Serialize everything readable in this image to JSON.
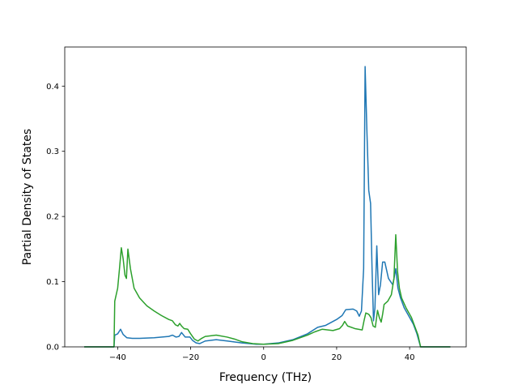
{
  "chart_data": {
    "type": "line",
    "title": "",
    "xlabel": "Frequency (THz)",
    "ylabel": "Partial Density of States",
    "xlim": [
      -54.5,
      55.5
    ],
    "ylim": [
      0,
      0.46
    ],
    "xticks": [
      -40,
      -20,
      0,
      20,
      40
    ],
    "yticks": [
      0.0,
      0.1,
      0.2,
      0.3,
      0.4
    ],
    "xtick_labels": [
      "−40",
      "−20",
      "0",
      "20",
      "40"
    ],
    "ytick_labels": [
      "0.0",
      "0.1",
      "0.2",
      "0.3",
      "0.4"
    ],
    "grid": false,
    "legend": "none",
    "series": [
      {
        "color": "#1f77b4",
        "x": [
          -49,
          -41,
          -40.8,
          -40,
          -39.2,
          -38.5,
          -37.5,
          -36,
          -34,
          -30,
          -26,
          -25,
          -24,
          -23.2,
          -22.5,
          -21.5,
          -20.2,
          -19.5,
          -18.5,
          -17.5,
          -16,
          -13,
          -10,
          -6,
          -2,
          0,
          4,
          8,
          12,
          14.8,
          17,
          20,
          21.5,
          22.5,
          24.5,
          25.5,
          26.2,
          26.8,
          27.4,
          27.8,
          28.3,
          28.8,
          29.3,
          29.7,
          30.1,
          30.5,
          31.0,
          31.5,
          32.0,
          32.6,
          33.2,
          34.2,
          35.4,
          36.2,
          36.8,
          37.5,
          38.5,
          40,
          41,
          42,
          43,
          51
        ],
        "y": [
          0,
          0,
          0.018,
          0.02,
          0.027,
          0.019,
          0.014,
          0.013,
          0.013,
          0.014,
          0.016,
          0.018,
          0.015,
          0.016,
          0.022,
          0.015,
          0.015,
          0.01,
          0.006,
          0.005,
          0.009,
          0.011,
          0.009,
          0.006,
          0.004,
          0.004,
          0.006,
          0.011,
          0.02,
          0.03,
          0.033,
          0.042,
          0.048,
          0.057,
          0.058,
          0.055,
          0.047,
          0.055,
          0.12,
          0.43,
          0.33,
          0.24,
          0.22,
          0.12,
          0.04,
          0.06,
          0.155,
          0.08,
          0.095,
          0.13,
          0.13,
          0.105,
          0.095,
          0.12,
          0.09,
          0.075,
          0.06,
          0.045,
          0.035,
          0.02,
          0,
          0
        ]
      },
      {
        "color": "#2ca02c",
        "x": [
          -49,
          -41,
          -40.8,
          -40,
          -39.5,
          -39.0,
          -38.5,
          -38.0,
          -37.6,
          -37.2,
          -36.5,
          -35.5,
          -34,
          -32,
          -30,
          -28,
          -26,
          -25,
          -24.2,
          -23.5,
          -23.0,
          -22.5,
          -21.8,
          -20.8,
          -20,
          -19,
          -18,
          -17,
          -16,
          -13,
          -10,
          -8,
          -6,
          -3,
          0,
          4,
          8,
          12,
          14,
          16,
          19,
          20.8,
          21.6,
          22.2,
          23,
          25,
          27,
          27.5,
          28,
          28.8,
          29.4,
          30.0,
          30.6,
          31.2,
          31.7,
          32.2,
          32.6,
          33.0,
          34.0,
          35.0,
          35.7,
          36.2,
          36.7,
          37.2,
          37.8,
          39,
          40.5,
          41.5,
          42.3,
          43,
          51
        ],
        "y": [
          0,
          0,
          0.07,
          0.09,
          0.12,
          0.152,
          0.135,
          0.11,
          0.105,
          0.15,
          0.12,
          0.09,
          0.075,
          0.063,
          0.055,
          0.048,
          0.042,
          0.04,
          0.034,
          0.032,
          0.036,
          0.032,
          0.028,
          0.027,
          0.02,
          0.012,
          0.009,
          0.013,
          0.016,
          0.018,
          0.015,
          0.012,
          0.008,
          0.005,
          0.004,
          0.005,
          0.01,
          0.018,
          0.023,
          0.027,
          0.025,
          0.028,
          0.033,
          0.039,
          0.032,
          0.028,
          0.026,
          0.04,
          0.052,
          0.05,
          0.045,
          0.032,
          0.03,
          0.056,
          0.045,
          0.038,
          0.05,
          0.065,
          0.07,
          0.08,
          0.105,
          0.172,
          0.115,
          0.09,
          0.075,
          0.06,
          0.045,
          0.03,
          0.018,
          0,
          0
        ]
      }
    ]
  }
}
